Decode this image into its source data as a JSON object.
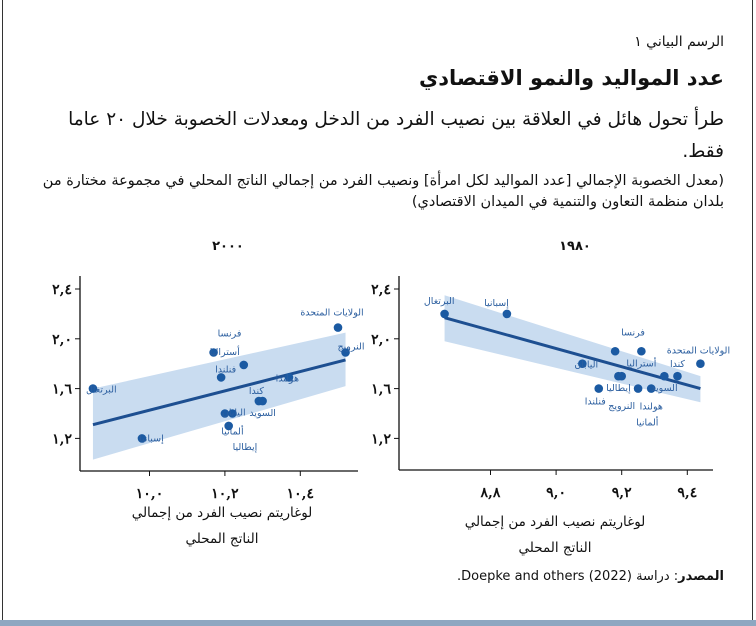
{
  "header": {
    "figure_label": "الرسم البياني ١",
    "title": "عدد المواليد والنمو الاقتصادي",
    "subtitle": "طرأ تحول هائل في العلاقة بين نصيب الفرد من الدخل ومعدلات الخصوبة خلال ٢٠ عاما فقط.",
    "note": "(معدل الخصوبة الإجمالي [عدد المواليد لكل امرأة] ونصيب الفرد من إجمالي الناتج المحلي في مجموعة مختارة من بلدان منظمة التعاون والتنمية في الميدان الاقتصادي)"
  },
  "source": {
    "label": "المصدر",
    "text": ": دراسة (2022) Doepke and others."
  },
  "colors": {
    "points": "#1b5aa2",
    "fit_line": "#1d4f91",
    "confidence_band": "#c9dcf0",
    "point_labels": "#2b5e9f"
  },
  "chart_data": [
    {
      "type": "scatter",
      "title": "١٩٨٠",
      "xlabel": [
        "لوغاريتم نصيب الفرد من إجمالي",
        "الناتج المحلي"
      ],
      "ylabel": "",
      "xlim": [
        8.6,
        9.5
      ],
      "ylim": [
        1.05,
        2.45
      ],
      "xticks": [
        8.8,
        9.0,
        9.2,
        9.4
      ],
      "xtick_labels": [
        "٨,٨",
        "٩,٠",
        "٩,٢",
        "٩,٤"
      ],
      "yticks": [
        1.2,
        1.6,
        2.0,
        2.4
      ],
      "ytick_labels": [
        "١,٢",
        "١,٦",
        "٢,٠",
        "٢,٤"
      ],
      "grid": false,
      "points": [
        {
          "label": "البرتغال",
          "x": 8.66,
          "y": 2.2
        },
        {
          "label": "إسبانيا",
          "x": 8.85,
          "y": 2.2
        },
        {
          "label": "فرنسا",
          "x": 9.18,
          "y": 1.9
        },
        {
          "label": "أستراليا",
          "x": 9.26,
          "y": 1.9
        },
        {
          "label": "الولايات المتحدة",
          "x": 9.44,
          "y": 1.8
        },
        {
          "label": "اليابان",
          "x": 9.08,
          "y": 1.8
        },
        {
          "label": "السويد",
          "x": 9.33,
          "y": 1.7
        },
        {
          "label": "كندا",
          "x": 9.37,
          "y": 1.7
        },
        {
          "label": "إيطاليا",
          "x": 9.19,
          "y": 1.7
        },
        {
          "label": "النرويج",
          "x": 9.2,
          "y": 1.7
        },
        {
          "label": "فنلندا",
          "x": 9.13,
          "y": 1.6
        },
        {
          "label": "ألمانيا",
          "x": 9.25,
          "y": 1.6
        },
        {
          "label": "هولندا",
          "x": 9.29,
          "y": 1.6
        }
      ],
      "fit_line": {
        "x": [
          8.66,
          9.44
        ],
        "y": [
          2.17,
          1.6
        ]
      },
      "confidence_band": {
        "x": [
          8.66,
          9.44
        ],
        "upper": [
          2.35,
          1.7
        ],
        "lower": [
          1.98,
          1.49
        ]
      }
    },
    {
      "type": "scatter",
      "title": "٢٠٠٠",
      "xlabel": [
        "لوغاريتم نصيب الفرد من إجمالي",
        "الناتج المحلي"
      ],
      "ylabel": "",
      "xlim": [
        9.8,
        10.55
      ],
      "ylim": [
        1.05,
        2.45
      ],
      "xticks": [
        10.0,
        10.2,
        10.4
      ],
      "xtick_labels": [
        "١٠,٠",
        "١٠,٢",
        "١٠,٤"
      ],
      "yticks": [
        1.2,
        1.6,
        2.0,
        2.4
      ],
      "ytick_labels": [
        "١,٢",
        "١,٦",
        "٢,٠",
        "٢,٤"
      ],
      "grid": false,
      "points": [
        {
          "label": "الولايات المتحدة",
          "x": 10.5,
          "y": 2.09
        },
        {
          "label": "النرويج",
          "x": 10.52,
          "y": 1.89
        },
        {
          "label": "فرنسا",
          "x": 10.17,
          "y": 1.89
        },
        {
          "label": "أستراليا",
          "x": 10.25,
          "y": 1.79
        },
        {
          "label": "فنلندا",
          "x": 10.19,
          "y": 1.69
        },
        {
          "label": "هولندا",
          "x": 10.37,
          "y": 1.69
        },
        {
          "label": "البرتغال",
          "x": 9.85,
          "y": 1.6
        },
        {
          "label": "كندا",
          "x": 10.29,
          "y": 1.5
        },
        {
          "label": "السويد",
          "x": 10.3,
          "y": 1.5
        },
        {
          "label": "اليابان",
          "x": 10.2,
          "y": 1.4
        },
        {
          "label": "ألمانيا",
          "x": 10.22,
          "y": 1.4
        },
        {
          "label": "إيطاليا",
          "x": 10.21,
          "y": 1.3
        },
        {
          "label": "إسبانيا",
          "x": 9.98,
          "y": 1.2
        }
      ],
      "fit_line": {
        "x": [
          9.85,
          10.52
        ],
        "y": [
          1.31,
          1.83
        ]
      },
      "confidence_band": {
        "x": [
          9.85,
          10.52
        ],
        "upper": [
          1.6,
          2.05
        ],
        "lower": [
          1.03,
          1.62
        ]
      }
    }
  ]
}
